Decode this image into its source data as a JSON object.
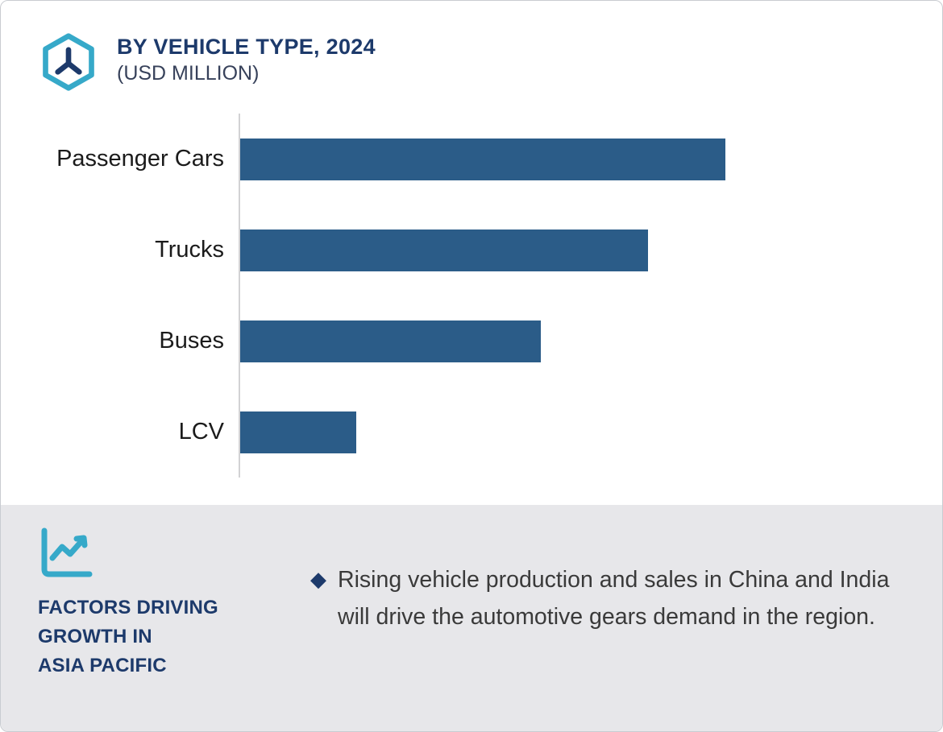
{
  "header": {
    "title": "BY VEHICLE TYPE, 2024",
    "subtitle": "(USD MILLION)"
  },
  "chart_data": {
    "type": "bar",
    "orientation": "horizontal",
    "title": "BY VEHICLE TYPE, 2024",
    "unit": "USD Million",
    "categories": [
      "Passenger Cars",
      "Trucks",
      "Buses",
      "LCV"
    ],
    "values": [
      100,
      84,
      62,
      24
    ],
    "value_scale": "relative (no axis values or data labels shown in image)",
    "xlabel": "",
    "ylabel": "",
    "grid": false,
    "legend": false,
    "bar_color": "#2b5c88"
  },
  "footer": {
    "heading": "FACTORS DRIVING\nGROWTH IN\nASIA PACIFIC",
    "bullet_marker": "◆",
    "bullet_text": "Rising vehicle production and sales in China and India will drive the automotive gears demand in the region."
  },
  "icons": {
    "logo": "hexagon-gear-icon",
    "footer": "line-chart-icon"
  },
  "colors": {
    "navy": "#1d3a6b",
    "teal": "#36a9c9",
    "bar": "#2b5c88",
    "panel_bg": "#e7e7ea",
    "axis": "#d2d2d4",
    "text_dark": "#3a3a3a"
  }
}
